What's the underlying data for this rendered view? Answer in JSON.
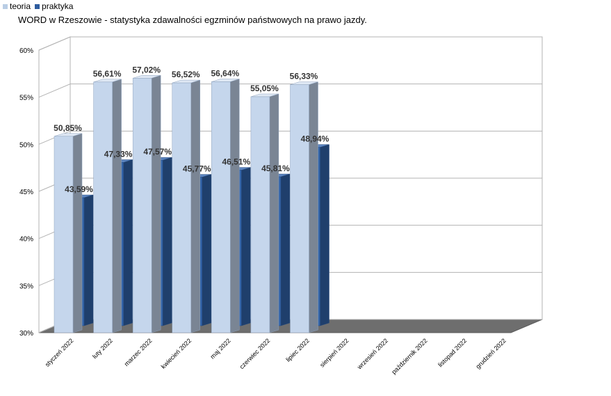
{
  "chart_data": {
    "type": "bar",
    "title": "WORD w Rzeszowie - statystyka zdawalności egzminów państwowych na prawo jazdy.",
    "categories": [
      "styczeń 2022",
      "luty 2022",
      "marzec 2022",
      "kwiecień 2022",
      "maj 2022",
      "czerwiec 2022",
      "lipiec 2022",
      "sierpień 2022",
      "wrzesień 2022",
      "październik 2022",
      "listopad 2022",
      "grudzień 2022"
    ],
    "series": [
      {
        "name": "teoria",
        "color": "#b9cde5",
        "values": [
          50.85,
          56.61,
          57.02,
          56.52,
          56.64,
          55.05,
          56.33,
          null,
          null,
          null,
          null,
          null
        ],
        "labels": [
          "50,85%",
          "56,61%",
          "57,02%",
          "56,52%",
          "56,64%",
          "55,05%",
          "56,33%",
          "",
          "",
          "",
          "",
          ""
        ]
      },
      {
        "name": "praktyka",
        "color": "#2e5c9e",
        "values": [
          43.59,
          47.33,
          47.57,
          45.77,
          46.51,
          45.81,
          48.94,
          null,
          null,
          null,
          null,
          null
        ],
        "labels": [
          "43,59%",
          "47,33%",
          "47,57%",
          "45,77%",
          "46,51%",
          "45,81%",
          "48,94%",
          "",
          "",
          "",
          "",
          ""
        ]
      }
    ],
    "yticks": [
      "30%",
      "35%",
      "40%",
      "45%",
      "50%",
      "55%",
      "60%"
    ],
    "ylim": [
      30,
      60
    ],
    "grid": true,
    "legend": "top-left",
    "style": "3d-clustered"
  }
}
